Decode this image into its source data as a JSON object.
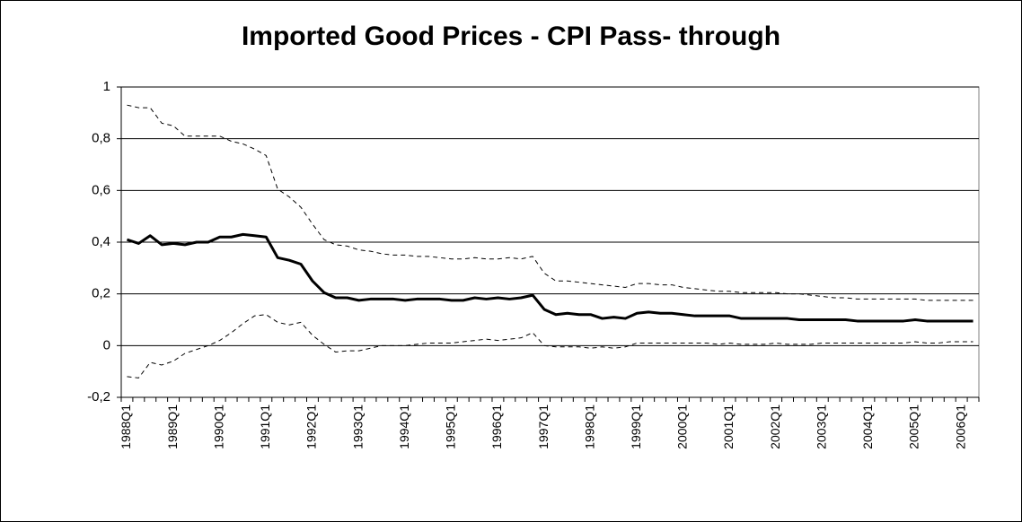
{
  "chart_data": {
    "type": "line",
    "title": "Imported Good Prices - CPI  Pass- through",
    "categories": [
      "1988Q1",
      null,
      null,
      null,
      "1989Q1",
      null,
      null,
      null,
      "1990Q1",
      null,
      null,
      null,
      "1991Q1",
      null,
      null,
      null,
      "1992Q1",
      null,
      null,
      null,
      "1993Q1",
      null,
      null,
      null,
      "1994Q1",
      null,
      null,
      null,
      "1995Q1",
      null,
      null,
      null,
      "1996Q1",
      null,
      null,
      null,
      "1997Q1",
      null,
      null,
      null,
      "1998Q1",
      null,
      null,
      null,
      "1999Q1",
      null,
      null,
      null,
      "2000Q1",
      null,
      null,
      null,
      "2001Q1",
      null,
      null,
      null,
      "2002Q1",
      null,
      null,
      null,
      "2003Q1",
      null,
      null,
      null,
      "2004Q1",
      null,
      null,
      null,
      "2005Q1",
      null,
      null,
      null,
      "2006Q1",
      null
    ],
    "series": [
      {
        "color": "#000000",
        "line_width": 3,
        "dashed": false,
        "values": [
          0.41,
          0.395,
          0.425,
          0.39,
          0.395,
          0.39,
          0.4,
          0.4,
          0.42,
          0.42,
          0.43,
          0.425,
          0.42,
          0.34,
          0.33,
          0.315,
          0.25,
          0.205,
          0.185,
          0.185,
          0.175,
          0.18,
          0.18,
          0.18,
          0.175,
          0.18,
          0.18,
          0.18,
          0.175,
          0.175,
          0.185,
          0.18,
          0.185,
          0.18,
          0.185,
          0.195,
          0.14,
          0.12,
          0.125,
          0.12,
          0.12,
          0.105,
          0.11,
          0.105,
          0.125,
          0.13,
          0.125,
          0.125,
          0.12,
          0.115,
          0.115,
          0.115,
          0.115,
          0.105,
          0.105,
          0.105,
          0.105,
          0.105,
          0.1,
          0.1,
          0.1,
          0.1,
          0.1,
          0.095,
          0.095,
          0.095,
          0.095,
          0.095,
          0.1,
          0.095,
          0.095,
          0.095,
          0.095,
          0.095
        ]
      },
      {
        "color": "#000000",
        "line_width": 1,
        "dashed": true,
        "values": [
          0.93,
          0.92,
          0.92,
          0.86,
          0.85,
          0.81,
          0.81,
          0.81,
          0.81,
          0.79,
          0.78,
          0.76,
          0.735,
          0.605,
          0.575,
          0.535,
          0.47,
          0.41,
          0.39,
          0.385,
          0.37,
          0.365,
          0.355,
          0.35,
          0.35,
          0.345,
          0.345,
          0.34,
          0.335,
          0.335,
          0.34,
          0.335,
          0.335,
          0.34,
          0.335,
          0.345,
          0.28,
          0.25,
          0.25,
          0.245,
          0.24,
          0.235,
          0.23,
          0.225,
          0.24,
          0.24,
          0.235,
          0.235,
          0.225,
          0.22,
          0.215,
          0.21,
          0.21,
          0.205,
          0.205,
          0.205,
          0.205,
          0.2,
          0.2,
          0.195,
          0.19,
          0.185,
          0.185,
          0.18,
          0.18,
          0.18,
          0.18,
          0.18,
          0.18,
          0.175,
          0.175,
          0.175,
          0.175,
          0.175
        ]
      },
      {
        "color": "#000000",
        "line_width": 1,
        "dashed": true,
        "values": [
          -0.12,
          -0.125,
          -0.065,
          -0.075,
          -0.06,
          -0.03,
          -0.015,
          0,
          0.02,
          0.05,
          0.085,
          0.115,
          0.12,
          0.09,
          0.08,
          0.09,
          0.04,
          0.005,
          -0.025,
          -0.02,
          -0.02,
          -0.01,
          0,
          0,
          0,
          0.005,
          0.01,
          0.01,
          0.01,
          0.015,
          0.02,
          0.025,
          0.02,
          0.025,
          0.03,
          0.05,
          0,
          -0.005,
          -0.005,
          -0.005,
          -0.01,
          -0.005,
          -0.01,
          -0.005,
          0.01,
          0.01,
          0.01,
          0.01,
          0.01,
          0.01,
          0.01,
          0.005,
          0.01,
          0.005,
          0.005,
          0.005,
          0.01,
          0.005,
          0.005,
          0.005,
          0.01,
          0.01,
          0.01,
          0.01,
          0.01,
          0.01,
          0.01,
          0.01,
          0.015,
          0.01,
          0.01,
          0.015,
          0.015,
          0.015
        ]
      }
    ],
    "ylim": [
      -0.2,
      1
    ],
    "yticks": [
      {
        "value": -0.2,
        "label": "-0,2"
      },
      0,
      {
        "value": 0.2,
        "label": "0,2"
      },
      {
        "value": 0.4,
        "label": "0,4"
      },
      {
        "value": 0.6,
        "label": "0,6"
      },
      {
        "value": 0.8,
        "label": "0,8"
      },
      1
    ],
    "grid": true
  }
}
